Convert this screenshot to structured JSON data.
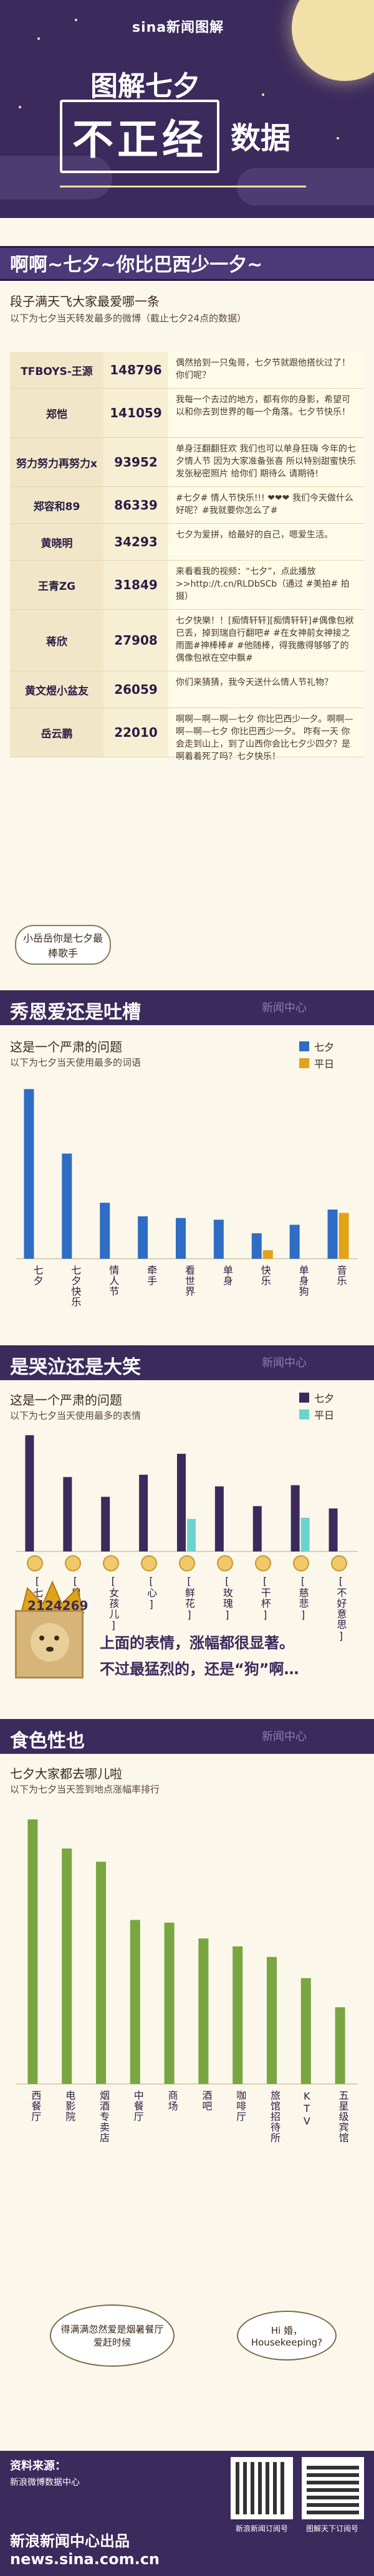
{
  "header": {
    "brand": "sina新闻图解",
    "title_top": "图解七夕",
    "title_main": "不正经",
    "title_tail": "数据"
  },
  "section1": {
    "title": "啊啊~七夕~你比巴西少一夕~",
    "subtitle": "段子满天飞大家最爱哪一条",
    "note": "以下为七夕当天转发最多的微博（截止七夕24点的数据）",
    "rows": [
      {
        "name": "TFBOYS-王源",
        "count": "148796",
        "text": "偶然拾到一只兔哥，七夕节就跟他搭伙过了！你们呢？"
      },
      {
        "name": "郑恺",
        "count": "141059",
        "text": "我每一个去过的地方，都有你的身影，希望可以和你去到世界的每一个角落。七夕节快乐！"
      },
      {
        "name": "努力努力再努力x",
        "count": "93952",
        "text": "单身汪翻翻狂欢 我们也可以单身狂嗨 今年的七夕情人节 因为大家准备张喜 所以特别甜蜜快乐 发张秘密照片 给你们 期待么 请期待!"
      },
      {
        "name": "郑容和89",
        "count": "86339",
        "text": "#七夕# 情人节快乐!!! ❤❤❤ 我们今天做什么好呢？#我就要你怎么了#"
      },
      {
        "name": "黄晓明",
        "count": "34293",
        "text": "七夕为爱拼，给最好的自己，嗯爱生活。"
      },
      {
        "name": "王青ZG",
        "count": "31849",
        "text": "来看看我的视频：“七夕”，点此播放>>http://t.cn/RLDbSCb（通过 #美拍# 拍摄）"
      },
      {
        "name": "蒋欣",
        "count": "27908",
        "text": "七夕快樂！！[痴情轩轩][痴情轩轩]#偶像包袱已丢，掉到瑞自行翻吧#  #在女神前女神接之雨面#神棒棒# #他随棒，得我撒得够够了的偶像包袱在空中飘#"
      },
      {
        "name": "黄文煜小盆友",
        "count": "26059",
        "text": "你们来猜猜，我今天送什么情人节礼物？"
      },
      {
        "name": "岳云鹏",
        "count": "22010",
        "text": "啊啊—啊—啊—七夕 你比巴西少一夕。啊啊—啊—啊—七夕 你比巴西少一夕。 咋有一天 你会走到山上，到了山西你会比七夕少四夕？是啊着着死了吗？七夕快乐！"
      }
    ],
    "bubble": "小岳岳你是七夕最棒歌手"
  },
  "section2": {
    "banner": "秀恩爱还是吐槽",
    "watermark": "新闻中心",
    "subtitle": "这是一个严肃的问题",
    "note": "以下为七夕当天使用最多的词语",
    "legend": [
      "七夕",
      "平日"
    ]
  },
  "section3": {
    "banner": "是哭泣还是大笑",
    "watermark": "新闻中心",
    "subtitle": "这是一个严肃的问题",
    "note": "以下为七夕当天使用最多的表情",
    "legend": [
      "七夕",
      "平日"
    ],
    "dog_count": "2124269",
    "quote1": "上面的表情，涨幅都很显著。",
    "quote2": "不过最猛烈的，还是“狗”啊…"
  },
  "section4": {
    "banner": "食色性也",
    "watermark": "新闻中心",
    "subtitle": "七夕大家都去哪儿啦",
    "note": "以下为七夕当天签到地点涨幅率排行",
    "bubble_left": "得满满忽然爱是烟暑餐厅爱赶时候",
    "bubble_right": "Hi 婚，Housekeeping?"
  },
  "chart_data": [
    {
      "type": "bar",
      "title": "",
      "categories": [
        "七夕",
        "七夕快乐",
        "情人节",
        "牵手",
        "看世界",
        "单身",
        "快乐",
        "单身狗",
        "音乐"
      ],
      "series": [
        {
          "name": "七夕",
          "values": [
            100,
            62,
            33,
            25,
            24,
            23,
            15,
            20,
            29
          ]
        },
        {
          "name": "平日",
          "values": [
            0,
            0,
            0,
            0,
            0,
            0,
            5,
            0,
            27
          ]
        }
      ],
      "ylim": [
        0,
        105
      ]
    },
    {
      "type": "bar",
      "title": "",
      "categories": [
        "[七夕快乐]",
        "[男孩儿]",
        "[女孩儿]",
        "[心]",
        "[鲜花]",
        "[玫瑰]",
        "[干杯]",
        "[慈悲]",
        "[不好意思]"
      ],
      "series": [
        {
          "name": "七夕",
          "values": [
            100,
            64,
            47,
            66,
            84,
            56,
            39,
            57,
            37
          ]
        },
        {
          "name": "平日",
          "values": [
            0,
            0,
            0,
            0,
            28,
            0,
            0,
            29,
            0
          ]
        }
      ],
      "ylim": [
        0,
        105
      ]
    },
    {
      "type": "bar",
      "title": "",
      "categories": [
        "西餐厅",
        "电影院",
        "烟酒专卖店",
        "中餐厅",
        "商场",
        "酒吧",
        "咖啡厅",
        "旅馆招待所",
        "KTV",
        "五星级宾馆"
      ],
      "series": [
        {
          "name": "涨幅率",
          "values": [
            100,
            89,
            84,
            62,
            61,
            55,
            52,
            48,
            40,
            29
          ]
        }
      ],
      "ylim": [
        0,
        105
      ]
    }
  ],
  "footer": {
    "source_label": "资料来源：",
    "source": "新浪微博数据中心",
    "qr1": "新浪新闻订阅号",
    "qr2": "图解天下订阅号",
    "credit": "新浪新闻中心出品",
    "url": "news.sina.com.cn"
  },
  "colors": {
    "purple": "#3b2a5c",
    "blue": "#2f6dc4",
    "orange": "#e0a319",
    "teal": "#6bd3cf",
    "green": "#79a641",
    "cream": "#fbf7ea"
  }
}
